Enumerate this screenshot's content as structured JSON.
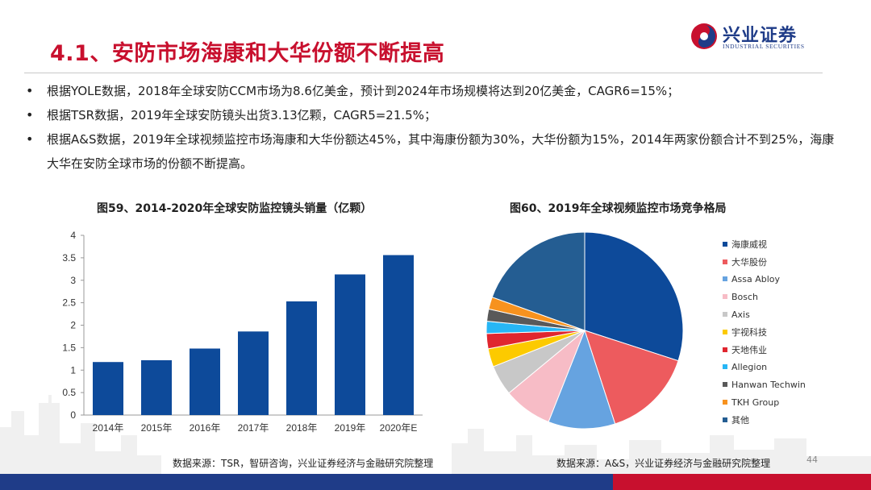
{
  "title": "4.1、安防市场海康和大华份额不断提高",
  "logo": {
    "name_cn": "兴业证券",
    "name_en": "INDUSTRIAL SECURITIES"
  },
  "bullets": [
    "根据YOLE数据，2018年全球安防CCM市场为8.6亿美金，预计到2024年市场规模将达到20亿美金，CAGR6=15%；",
    "根据TSR数据，2019年全球安防镜头出货3.13亿颗，CAGR5=21.5%；",
    "根据A&S数据，2019年全球视频监控市场海康和大华份额达45%，其中海康份额为30%，大华份额为15%，2014年两家份额合计不到25%，海康大华在安防全球市场的份额不断提高。"
  ],
  "figures": {
    "fig59_caption": "图59、2014-2020年全球安防监控镜头销量（亿颗）",
    "fig60_caption": "图60、2019年全球视频监控市场竞争格局",
    "fig59_source": "数据来源：TSR，智研咨询，兴业证券经济与金融研究院整理",
    "fig60_source": "数据来源：A&S，兴业证券经济与金融研究院整理"
  },
  "page_number": "44",
  "chart_data": [
    {
      "type": "bar",
      "title": "图59、2014-2020年全球安防监控镜头销量（亿颗）",
      "categories": [
        "2014年",
        "2015年",
        "2016年",
        "2017年",
        "2018年",
        "2019年",
        "2020年E"
      ],
      "values": [
        1.18,
        1.22,
        1.48,
        1.86,
        2.53,
        3.13,
        3.56
      ],
      "ylim": [
        0,
        4
      ],
      "yticks": [
        "0",
        "0.5",
        "1",
        "1.5",
        "2",
        "2.5",
        "3",
        "3.5",
        "4"
      ],
      "grid": false,
      "color": "#0d4a9a"
    },
    {
      "type": "pie",
      "title": "图60、2019年全球视频监控市场竞争格局",
      "legend_position": "right",
      "slices": [
        {
          "label": "海康威视",
          "value": 30,
          "color": "#0d4a9a"
        },
        {
          "label": "大华股份",
          "value": 15,
          "color": "#ed5b5e"
        },
        {
          "label": "Assa Abloy",
          "value": 11,
          "color": "#66a3e0"
        },
        {
          "label": "Bosch",
          "value": 8,
          "color": "#f7bcc6"
        },
        {
          "label": "Axis",
          "value": 5,
          "color": "#c8c8c8"
        },
        {
          "label": "宇视科技",
          "value": 3,
          "color": "#fcca00"
        },
        {
          "label": "天地伟业",
          "value": 2.5,
          "color": "#e0262f"
        },
        {
          "label": "Allegion",
          "value": 2,
          "color": "#27b6f5"
        },
        {
          "label": "Hanwan Techwin",
          "value": 2,
          "color": "#595959"
        },
        {
          "label": "TKH Group",
          "value": 2,
          "color": "#f7921e"
        },
        {
          "label": "其他",
          "value": 19.5,
          "color": "#245d92"
        }
      ]
    }
  ]
}
